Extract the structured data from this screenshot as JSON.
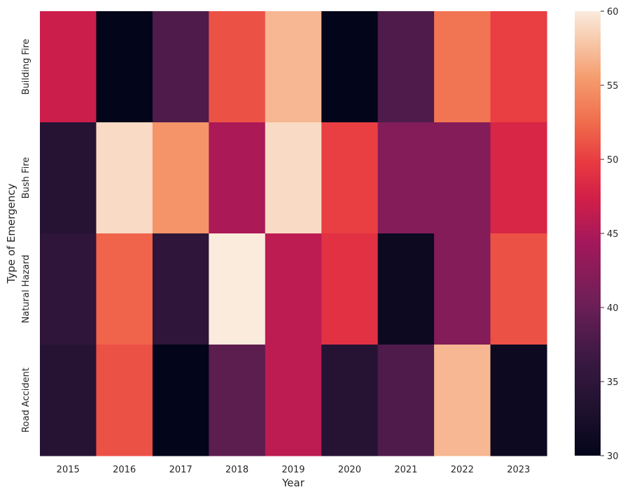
{
  "chart_data": {
    "type": "heatmap",
    "title": "",
    "xlabel": "Year",
    "ylabel": "Type of Emergency",
    "x_categories": [
      "2015",
      "2016",
      "2017",
      "2018",
      "2019",
      "2020",
      "2021",
      "2022",
      "2023"
    ],
    "y_categories": [
      "Building Fire",
      "Bush Fire",
      "Natural Hazard",
      "Road Accident"
    ],
    "values": [
      [
        47,
        30,
        38,
        51,
        57,
        30,
        38,
        53,
        50
      ],
      [
        34,
        59,
        55,
        45,
        59,
        50,
        42,
        42,
        48
      ],
      [
        35,
        52,
        35,
        60,
        46,
        49,
        31,
        42,
        51
      ],
      [
        34,
        51,
        30,
        39,
        46,
        34,
        38,
        57,
        31
      ]
    ],
    "colorbar": {
      "min": 30,
      "max": 60,
      "ticks": [
        "30",
        "35",
        "40",
        "45",
        "50",
        "55",
        "60"
      ],
      "colormap": "rocket"
    }
  }
}
